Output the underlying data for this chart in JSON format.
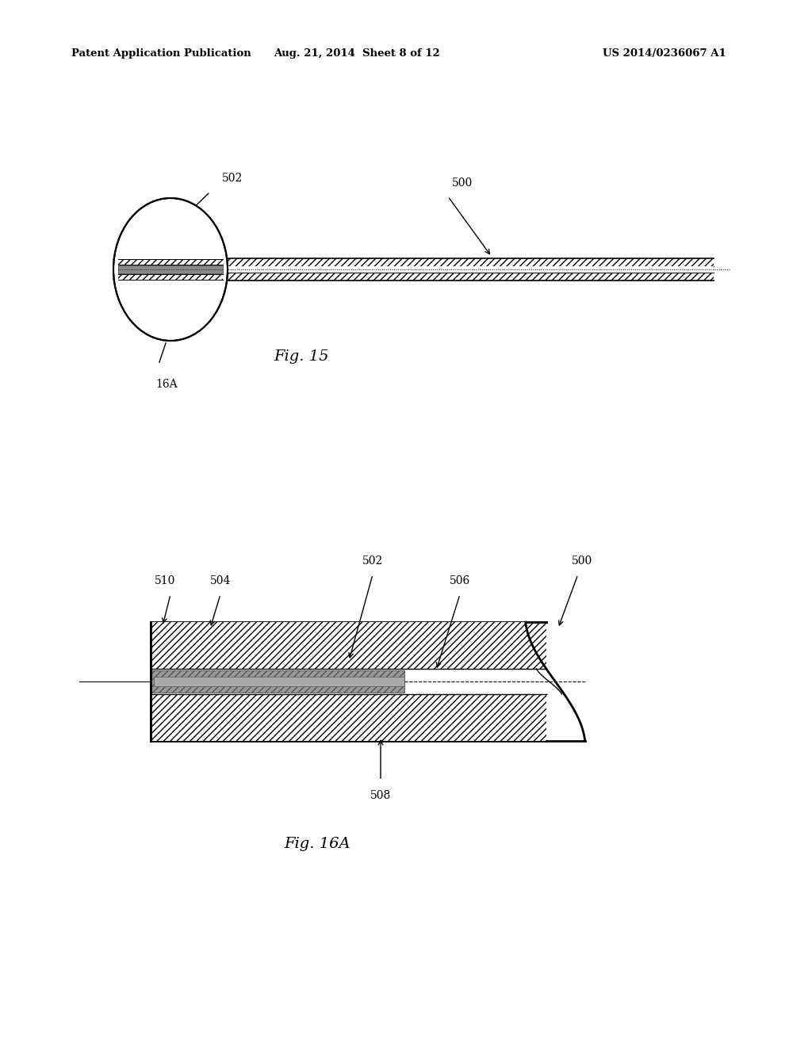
{
  "bg_color": "#ffffff",
  "header_left": "Patent Application Publication",
  "header_mid": "Aug. 21, 2014  Sheet 8 of 12",
  "header_right": "US 2014/0236067 A1",
  "fig15_label": "Fig. 15",
  "fig16a_label": "Fig. 16A"
}
